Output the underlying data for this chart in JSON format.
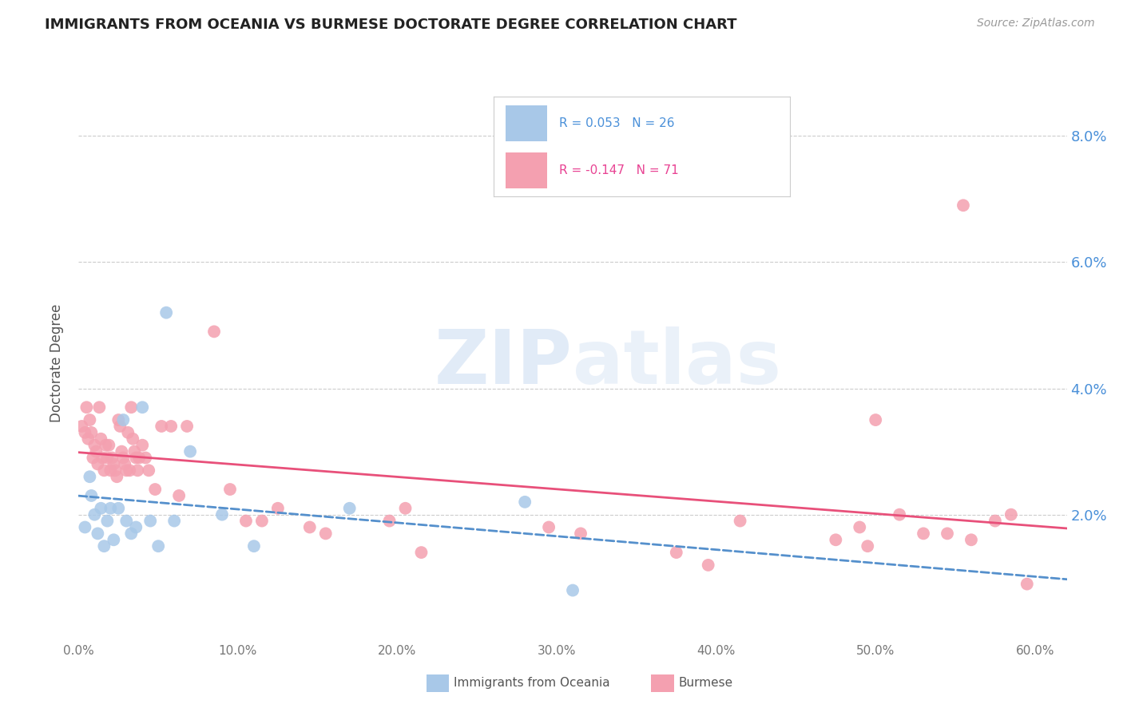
{
  "title": "IMMIGRANTS FROM OCEANIA VS BURMESE DOCTORATE DEGREE CORRELATION CHART",
  "source": "Source: ZipAtlas.com",
  "ylabel": "Doctorate Degree",
  "yaxis_ticks": [
    "2.0%",
    "4.0%",
    "6.0%",
    "8.0%"
  ],
  "yaxis_values": [
    0.02,
    0.04,
    0.06,
    0.08
  ],
  "xaxis_ticks": [
    "0.0%",
    "10.0%",
    "20.0%",
    "30.0%",
    "40.0%",
    "50.0%",
    "60.0%"
  ],
  "xaxis_values": [
    0.0,
    0.1,
    0.2,
    0.3,
    0.4,
    0.5,
    0.6
  ],
  "legend1_r": "0.053",
  "legend1_n": "26",
  "legend2_r": "-0.147",
  "legend2_n": "71",
  "legend1_label": "Immigrants from Oceania",
  "legend2_label": "Burmese",
  "blue_color": "#a8c8e8",
  "pink_color": "#f4a0b0",
  "trend_blue": "#5590cc",
  "trend_pink": "#e8507a",
  "watermark_zip": "ZIP",
  "watermark_atlas": "atlas",
  "blue_scatter_x": [
    0.004,
    0.007,
    0.008,
    0.01,
    0.012,
    0.014,
    0.016,
    0.018,
    0.02,
    0.022,
    0.025,
    0.028,
    0.03,
    0.033,
    0.036,
    0.04,
    0.045,
    0.05,
    0.055,
    0.06,
    0.07,
    0.09,
    0.11,
    0.17,
    0.28,
    0.31
  ],
  "blue_scatter_y": [
    0.018,
    0.026,
    0.023,
    0.02,
    0.017,
    0.021,
    0.015,
    0.019,
    0.021,
    0.016,
    0.021,
    0.035,
    0.019,
    0.017,
    0.018,
    0.037,
    0.019,
    0.015,
    0.052,
    0.019,
    0.03,
    0.02,
    0.015,
    0.021,
    0.022,
    0.008
  ],
  "pink_scatter_x": [
    0.002,
    0.004,
    0.005,
    0.006,
    0.007,
    0.008,
    0.009,
    0.01,
    0.011,
    0.012,
    0.013,
    0.014,
    0.015,
    0.016,
    0.017,
    0.018,
    0.019,
    0.02,
    0.021,
    0.022,
    0.023,
    0.024,
    0.025,
    0.026,
    0.027,
    0.028,
    0.029,
    0.03,
    0.031,
    0.032,
    0.033,
    0.034,
    0.035,
    0.036,
    0.037,
    0.038,
    0.04,
    0.042,
    0.044,
    0.048,
    0.052,
    0.058,
    0.063,
    0.068,
    0.085,
    0.095,
    0.105,
    0.115,
    0.125,
    0.145,
    0.155,
    0.195,
    0.205,
    0.215,
    0.295,
    0.315,
    0.375,
    0.395,
    0.415,
    0.475,
    0.495,
    0.515,
    0.545,
    0.555,
    0.575,
    0.585,
    0.49,
    0.53,
    0.56,
    0.595,
    0.5
  ],
  "pink_scatter_y": [
    0.034,
    0.033,
    0.037,
    0.032,
    0.035,
    0.033,
    0.029,
    0.031,
    0.03,
    0.028,
    0.037,
    0.032,
    0.029,
    0.027,
    0.031,
    0.029,
    0.031,
    0.027,
    0.029,
    0.028,
    0.027,
    0.026,
    0.035,
    0.034,
    0.03,
    0.029,
    0.028,
    0.027,
    0.033,
    0.027,
    0.037,
    0.032,
    0.03,
    0.029,
    0.027,
    0.029,
    0.031,
    0.029,
    0.027,
    0.024,
    0.034,
    0.034,
    0.023,
    0.034,
    0.049,
    0.024,
    0.019,
    0.019,
    0.021,
    0.018,
    0.017,
    0.019,
    0.021,
    0.014,
    0.018,
    0.017,
    0.014,
    0.012,
    0.019,
    0.016,
    0.015,
    0.02,
    0.017,
    0.069,
    0.019,
    0.02,
    0.018,
    0.017,
    0.016,
    0.009,
    0.035
  ],
  "xlim": [
    0.0,
    0.62
  ],
  "ylim": [
    0.0,
    0.088
  ]
}
